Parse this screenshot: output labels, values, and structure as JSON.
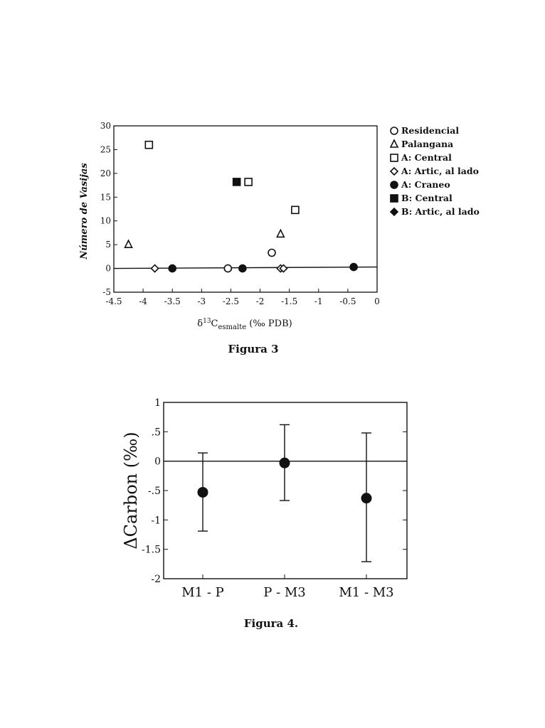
{
  "figures": [
    {
      "caption": "Figura 3",
      "ylabel": "Número de Vasijas",
      "xlabel_prefix": "δ",
      "xlabel_sup": "13",
      "xlabel_main": "C",
      "xlabel_sub": "esmalte",
      "xlabel_suffix": " (‰ PDB)",
      "xlim": [
        -4.5,
        0
      ],
      "ylim": [
        -5,
        30
      ],
      "xticks": [
        "-4.5",
        "-4",
        "-3.5",
        "-3",
        "-2.5",
        "-2",
        "-1.5",
        "-1",
        "-0.5",
        "0"
      ],
      "yticks": [
        "-5",
        "0",
        "5",
        "10",
        "15",
        "20",
        "25",
        "30"
      ],
      "legend": [
        {
          "label": "Residencial",
          "marker": "circle-open"
        },
        {
          "label": "Palangana",
          "marker": "triangle-open"
        },
        {
          "label": "A:  Central",
          "marker": "square-open"
        },
        {
          "label": "A:  Artic, al lado",
          "marker": "diamond-open"
        },
        {
          "label": "A:  Craneo",
          "marker": "circle-filled"
        },
        {
          "label": "B:  Central",
          "marker": "square-filled"
        },
        {
          "label": "B:  Artic, al lado",
          "marker": "diamond-filled"
        }
      ]
    },
    {
      "caption": "Figura 4.",
      "ylabel_delta": "Δ",
      "ylabel": "Carbon  (‰)",
      "ylim": [
        -2,
        1
      ],
      "yticks": [
        "1",
        ".5",
        "0",
        "-.5",
        "-1",
        "-1.5",
        "-2"
      ],
      "categories": [
        "M1 - P",
        "P - M3",
        "M1 - M3"
      ]
    }
  ],
  "chart_data": [
    {
      "type": "scatter",
      "title": "",
      "xlabel": "δ13Cesmalte (‰ PDB)",
      "ylabel": "Número de Vasijas",
      "xlim": [
        -4.5,
        0
      ],
      "ylim": [
        -5,
        30
      ],
      "reference_line_y": 0,
      "legend_position": "right",
      "series": [
        {
          "name": "Residencial",
          "marker": "circle-open",
          "points": [
            [
              -2.55,
              0
            ],
            [
              -1.8,
              3.3
            ]
          ]
        },
        {
          "name": "Palangana",
          "marker": "triangle-open",
          "points": [
            [
              -4.25,
              5
            ],
            [
              -1.65,
              7.2
            ]
          ]
        },
        {
          "name": "A:  Central",
          "marker": "square-open",
          "points": [
            [
              -3.9,
              26
            ],
            [
              -2.2,
              18.2
            ],
            [
              -1.4,
              12.3
            ]
          ]
        },
        {
          "name": "A:  Artic, al lado",
          "marker": "diamond-open",
          "points": [
            [
              -3.8,
              0
            ],
            [
              -1.65,
              0
            ],
            [
              -1.6,
              0
            ]
          ]
        },
        {
          "name": "A:  Craneo",
          "marker": "circle-filled",
          "points": [
            [
              -3.5,
              0
            ],
            [
              -2.3,
              0
            ],
            [
              -0.4,
              0.3
            ]
          ]
        },
        {
          "name": "B:  Central",
          "marker": "square-filled",
          "points": [
            [
              -2.4,
              18.2
            ]
          ]
        },
        {
          "name": "B:  Artic, al lado",
          "marker": "diamond-filled",
          "points": []
        }
      ]
    },
    {
      "type": "scatter",
      "title": "",
      "xlabel": "",
      "ylabel": "ΔCarbon  (‰)",
      "categories": [
        "M1 - P",
        "P - M3",
        "M1 - M3"
      ],
      "ylim": [
        -2,
        1
      ],
      "reference_line_y": 0,
      "values": [
        -0.53,
        -0.03,
        -0.63
      ],
      "error_low": [
        -1.19,
        -0.67,
        -1.71
      ],
      "error_high": [
        0.14,
        0.62,
        0.48
      ]
    }
  ]
}
